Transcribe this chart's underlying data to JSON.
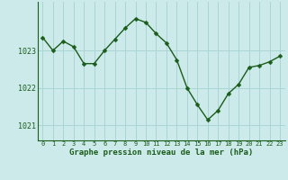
{
  "x": [
    0,
    1,
    2,
    3,
    4,
    5,
    6,
    7,
    8,
    9,
    10,
    11,
    12,
    13,
    14,
    15,
    16,
    17,
    18,
    19,
    20,
    21,
    22,
    23
  ],
  "y": [
    1023.35,
    1023.0,
    1023.25,
    1023.1,
    1022.65,
    1022.65,
    1023.0,
    1023.3,
    1023.6,
    1023.85,
    1023.75,
    1023.45,
    1023.2,
    1022.75,
    1022.0,
    1021.55,
    1021.15,
    1021.4,
    1021.85,
    1022.1,
    1022.55,
    1022.6,
    1022.7,
    1022.85
  ],
  "line_color": "#1a5c1a",
  "marker": "D",
  "marker_size": 2.5,
  "bg_color": "#cceaea",
  "grid_color": "#aad4d4",
  "xlabel": "Graphe pression niveau de la mer (hPa)",
  "xlabel_color": "#1a5c1a",
  "tick_color": "#1a5c1a",
  "yticks": [
    1021,
    1022,
    1023
  ],
  "ylim": [
    1020.6,
    1024.3
  ],
  "xlim": [
    -0.5,
    23.5
  ],
  "xticks": [
    0,
    1,
    2,
    3,
    4,
    5,
    6,
    7,
    8,
    9,
    10,
    11,
    12,
    13,
    14,
    15,
    16,
    17,
    18,
    19,
    20,
    21,
    22,
    23
  ],
  "xtick_fontsize": 5.0,
  "ytick_fontsize": 6.0,
  "xlabel_fontsize": 6.5
}
